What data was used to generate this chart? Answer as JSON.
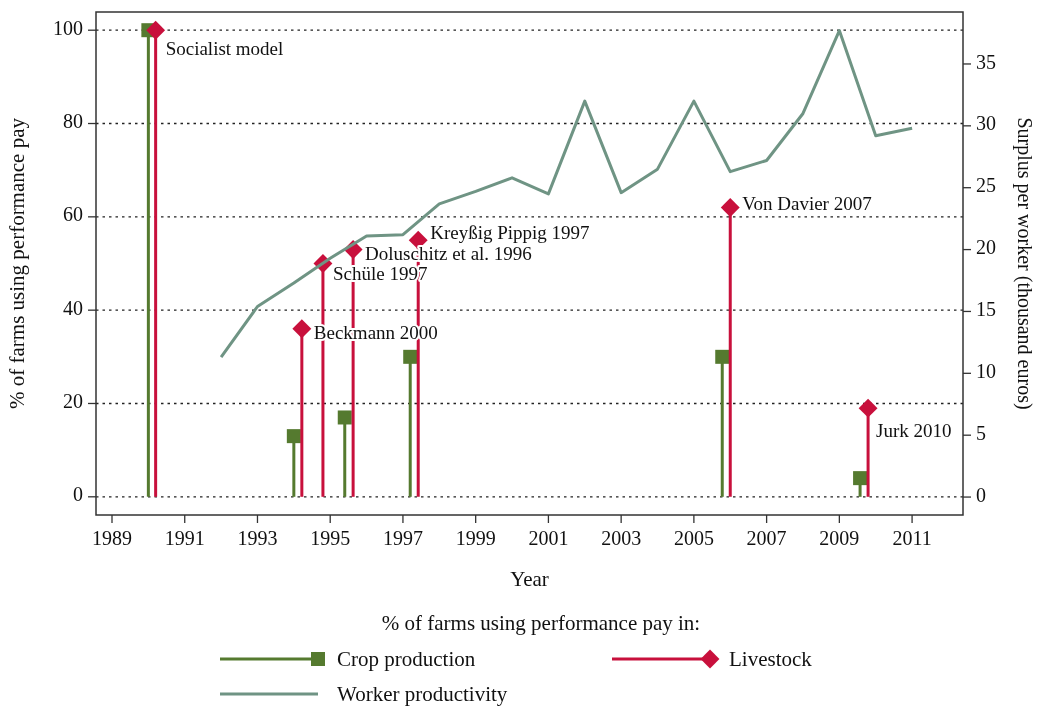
{
  "chart_data": {
    "type": "lollipop",
    "xlabel": "Year",
    "ylabel": "% of farms using performance pay",
    "y2label": "Surplus per worker (thousand euros)",
    "legend_title": "% of farms using performance pay in:",
    "xlim": [
      1988.56,
      2012.4
    ],
    "xticks": [
      1989,
      1991,
      1993,
      1995,
      1997,
      1999,
      2001,
      2003,
      2005,
      2007,
      2009,
      2011
    ],
    "ylim": [
      -3.9,
      103.9
    ],
    "yticks": [
      0,
      20,
      40,
      60,
      80,
      100
    ],
    "y2lim": [
      -1.45,
      39.2
    ],
    "y2ticks": [
      0,
      5,
      10,
      15,
      20,
      25,
      30,
      35
    ],
    "grid": "y",
    "legend": "bottom",
    "series": [
      {
        "name": "Crop production",
        "marker": "square",
        "color": "#557a2f",
        "x": [
          1990,
          1994,
          1995.4,
          1997.2,
          2005.78,
          2009.57
        ],
        "values": [
          100,
          13,
          17,
          30,
          30,
          4
        ]
      },
      {
        "name": "Livestock",
        "marker": "diamond",
        "color": "#c8103c",
        "x": [
          1990.2,
          1994.22,
          1994.8,
          1995.63,
          1997.42,
          2006,
          2009.79
        ],
        "values": [
          100,
          36,
          50,
          53,
          55,
          62,
          19
        ]
      },
      {
        "name": "Worker productivity",
        "type": "line",
        "axis": "y2",
        "marker": "none",
        "line_style": "solid",
        "color": "#6f9484",
        "x": [
          1992,
          1993,
          1994,
          1995,
          1996,
          1997,
          1998,
          1999,
          2000,
          2001,
          2002,
          2003,
          2004,
          2005,
          2006,
          2007,
          2008,
          2009,
          2010,
          2011
        ],
        "values": [
          11.3,
          15.4,
          17.3,
          19.3,
          21.1,
          21.2,
          23.7,
          24.7,
          25.8,
          24.5,
          32.0,
          24.6,
          26.5,
          32.0,
          26.3,
          27.2,
          31.0,
          37.7,
          29.2,
          29.8
        ]
      }
    ],
    "annotations": [
      {
        "text": "Socialist model",
        "x": 1990.2,
        "y": 100
      },
      {
        "text": "Beckmann 2000",
        "x": 1994.22,
        "y": 36
      },
      {
        "text": "Schüle 1997",
        "x": 1994.8,
        "y": 50
      },
      {
        "text": "Doluschitz et al. 1996",
        "x": 1995.63,
        "y": 53
      },
      {
        "text": "Kreyßig Pippig 1997",
        "x": 1997.42,
        "y": 55
      },
      {
        "text": "Von Davier 2007",
        "x": 2006,
        "y": 62
      },
      {
        "text": "Jurk 2010",
        "x": 2009.79,
        "y": 19
      }
    ]
  }
}
